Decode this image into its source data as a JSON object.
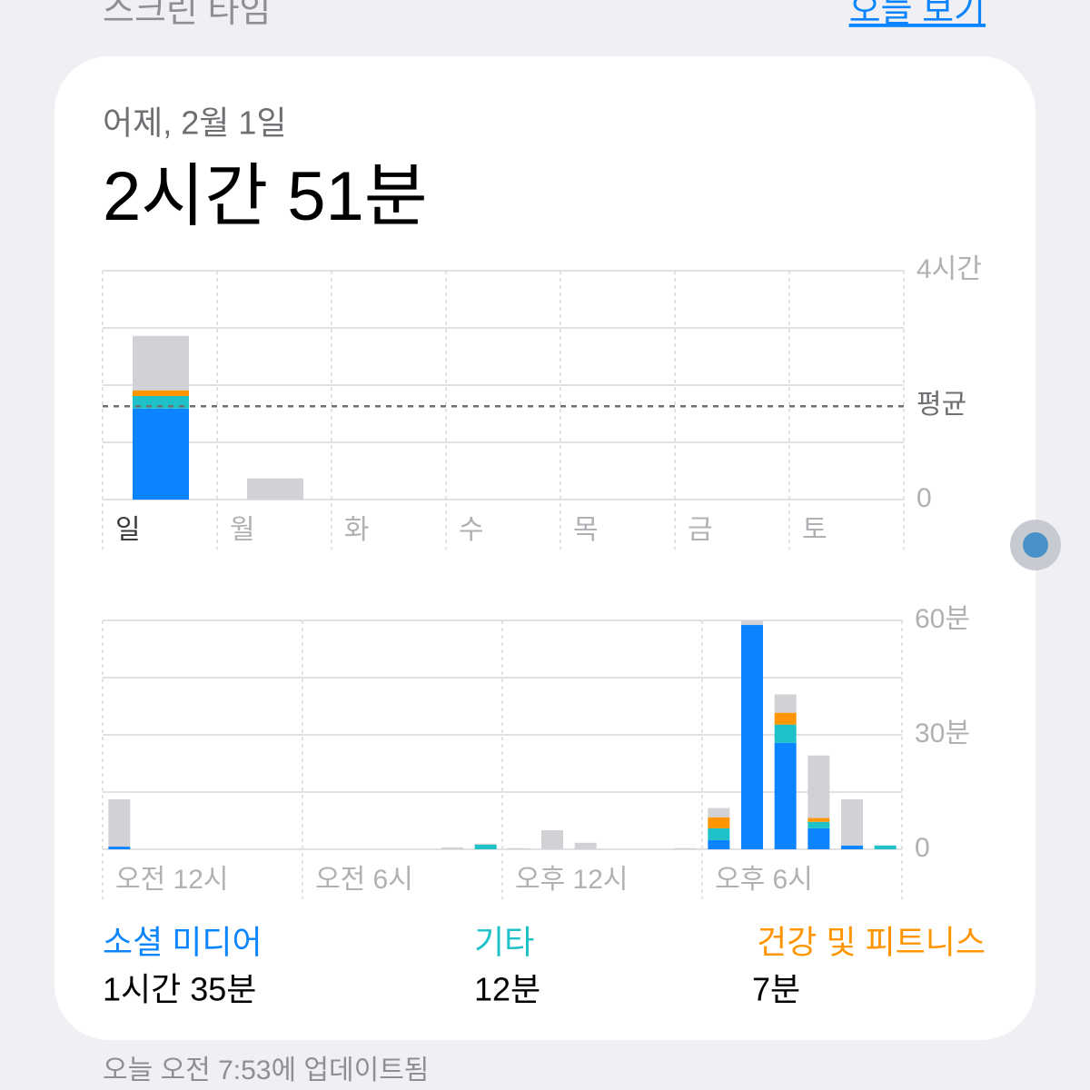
{
  "header": {
    "title": "스크린 타임",
    "link": "오늘 보기"
  },
  "card": {
    "date": "어제, 2월 1일",
    "total": "2시간 51분",
    "summary": [
      "1시간 35분",
      "12분",
      "7분"
    ]
  },
  "footer": "오늘 오전 7:53에 업데이트됨",
  "chart_data": [
    {
      "type": "bar",
      "stacked": true,
      "categories": [
        "일",
        "월",
        "화",
        "수",
        "목",
        "금",
        "토"
      ],
      "series": [
        {
          "name": "소셜 미디어",
          "color": "#0a84ff",
          "values": [
            1.59,
            0,
            null,
            null,
            null,
            null,
            null
          ]
        },
        {
          "name": "기타",
          "color": "#1fc1c8",
          "values": [
            0.22,
            0,
            null,
            null,
            null,
            null,
            null
          ]
        },
        {
          "name": "건강 및 피트니스",
          "color": "#ff9500",
          "values": [
            0.1,
            0,
            null,
            null,
            null,
            null,
            null
          ]
        },
        {
          "color": "#d1d1d6",
          "values": [
            0.95,
            0.37,
            null,
            null,
            null,
            null,
            null
          ]
        }
      ],
      "ylim": [
        0,
        4
      ],
      "yticks": [
        0,
        {
          "value": 4,
          "label": "4시간"
        }
      ],
      "minor_yticks": [
        1,
        2,
        3
      ],
      "average": {
        "value": 1.63,
        "label": "평균"
      },
      "grid": true
    },
    {
      "type": "bar",
      "stacked": true,
      "categories": [
        "오전 12시",
        null,
        null,
        null,
        null,
        null,
        "오전 6시",
        null,
        null,
        null,
        null,
        null,
        "오후 12시",
        null,
        null,
        null,
        null,
        null,
        "오후 6시",
        null,
        null,
        null,
        null,
        null
      ],
      "series": [
        {
          "color": "#0a84ff",
          "values": [
            0.7,
            0,
            0,
            0,
            0,
            0,
            0,
            0,
            0,
            0,
            0,
            0,
            0,
            0,
            0,
            0,
            0,
            0,
            2.4,
            58.8,
            27.9,
            5.5,
            1,
            0
          ]
        },
        {
          "color": "#1fc1c8",
          "values": [
            0,
            0,
            0,
            0,
            0,
            0,
            0,
            0,
            0,
            0,
            0,
            1.2,
            0,
            0,
            0,
            0,
            0,
            0,
            3.1,
            0,
            4.8,
            1.7,
            0,
            1
          ]
        },
        {
          "color": "#ff9500",
          "values": [
            0,
            0,
            0,
            0,
            0,
            0,
            0,
            0,
            0,
            0,
            0,
            0,
            0,
            0,
            0,
            0,
            0,
            0,
            2.9,
            0,
            3.1,
            1,
            0,
            0
          ]
        },
        {
          "color": "#d1d1d6",
          "values": [
            12.4,
            0,
            0,
            0,
            0,
            0,
            0,
            0,
            0,
            0,
            0.5,
            0.3,
            0.3,
            5,
            1.7,
            0,
            0,
            0.3,
            2.4,
            1.2,
            4.8,
            16.4,
            12.1,
            0
          ]
        }
      ],
      "ylim": [
        0,
        60
      ],
      "yticks": [
        0,
        {
          "value": 30,
          "label": "30분"
        },
        {
          "value": 60,
          "label": "60분"
        }
      ],
      "minor_yticks": [
        15,
        45
      ],
      "grid": true
    }
  ]
}
